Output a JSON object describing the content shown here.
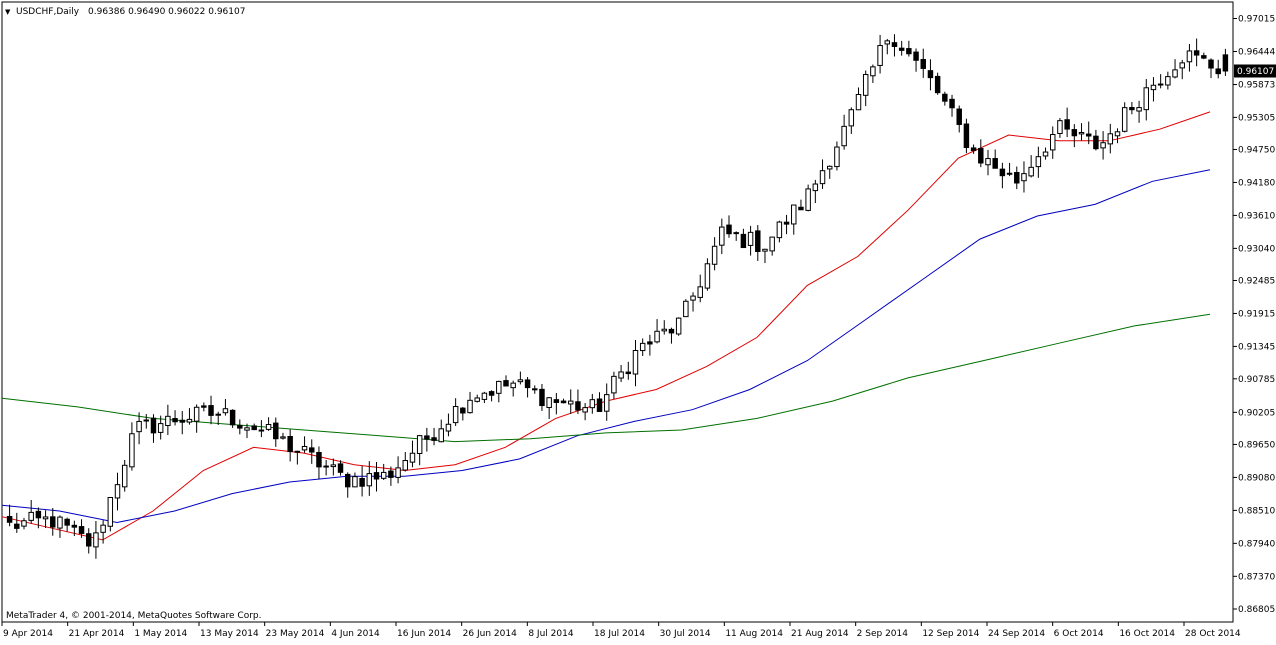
{
  "header": {
    "collapse_glyph": "▼",
    "symbol": "USDCHF,Daily",
    "ohlc": "0.96386 0.96490 0.96022 0.96107"
  },
  "footer": {
    "copyright": "MetaTrader 4, © 2001-2014, MetaQuotes Software Corp."
  },
  "price_tag": "0.96107",
  "colors": {
    "background": "#ffffff",
    "candle": "#000000",
    "ma_fast": "#e00000",
    "ma_mid": "#0000c0",
    "ma_slow": "#007000",
    "price_tag_bg": "#000000",
    "price_tag_fg": "#ffffff"
  },
  "chart_data": {
    "type": "candlestick",
    "symbol": "USDCHF",
    "timeframe": "Daily",
    "ylim": [
      0.8658,
      0.973
    ],
    "y_ticks": [
      "0.97015",
      "0.96444",
      "0.95873",
      "0.95305",
      "0.94750",
      "0.94180",
      "0.93610",
      "0.93040",
      "0.92485",
      "0.91915",
      "0.91345",
      "0.90785",
      "0.90205",
      "0.89650",
      "0.89080",
      "0.88510",
      "0.87940",
      "0.87370",
      "0.86805"
    ],
    "x_ticks": [
      "9 Apr 2014",
      "21 Apr 2014",
      "1 May 2014",
      "13 May 2014",
      "23 May 2014",
      "4 Jun 2014",
      "16 Jun 2014",
      "26 Jun 2014",
      "8 Jul 2014",
      "18 Jul 2014",
      "30 Jul 2014",
      "11 Aug 2014",
      "21 Aug 2014",
      "2 Sep 2014",
      "12 Sep 2014",
      "24 Sep 2014",
      "6 Oct 2014",
      "16 Oct 2014",
      "28 Oct 2014"
    ],
    "close_anchors": [
      0.8825,
      0.8835,
      0.879,
      0.899,
      0.901,
      0.902,
      0.899,
      0.895,
      0.8905,
      0.891,
      0.898,
      0.905,
      0.907,
      0.904,
      0.9025,
      0.913,
      0.9175,
      0.933,
      0.931,
      0.939,
      0.952,
      0.968,
      0.959,
      0.947,
      0.942,
      0.951,
      0.948,
      0.957,
      0.964,
      0.9611
    ],
    "last_candle": {
      "open": 0.96386,
      "high": 0.9649,
      "low": 0.96022,
      "close": 0.96107
    },
    "candle_count": 170,
    "moving_averages": [
      {
        "color": "ma_fast",
        "values": [
          0.884,
          0.882,
          0.88,
          0.885,
          0.892,
          0.896,
          0.895,
          0.893,
          0.892,
          0.893,
          0.896,
          0.901,
          0.904,
          0.906,
          0.91,
          0.915,
          0.924,
          0.929,
          0.937,
          0.946,
          0.95,
          0.949,
          0.949,
          0.951,
          0.954
        ]
      },
      {
        "color": "ma_mid",
        "values": [
          0.886,
          0.885,
          0.883,
          0.885,
          0.888,
          0.89,
          0.891,
          0.891,
          0.892,
          0.894,
          0.898,
          0.9005,
          0.9025,
          0.906,
          0.911,
          0.918,
          0.925,
          0.932,
          0.936,
          0.938,
          0.942,
          0.944
        ]
      },
      {
        "color": "ma_slow",
        "values": [
          0.9045,
          0.903,
          0.901,
          0.9,
          0.899,
          0.898,
          0.897,
          0.8975,
          0.8985,
          0.899,
          0.901,
          0.904,
          0.908,
          0.911,
          0.914,
          0.917,
          0.919
        ]
      }
    ]
  }
}
